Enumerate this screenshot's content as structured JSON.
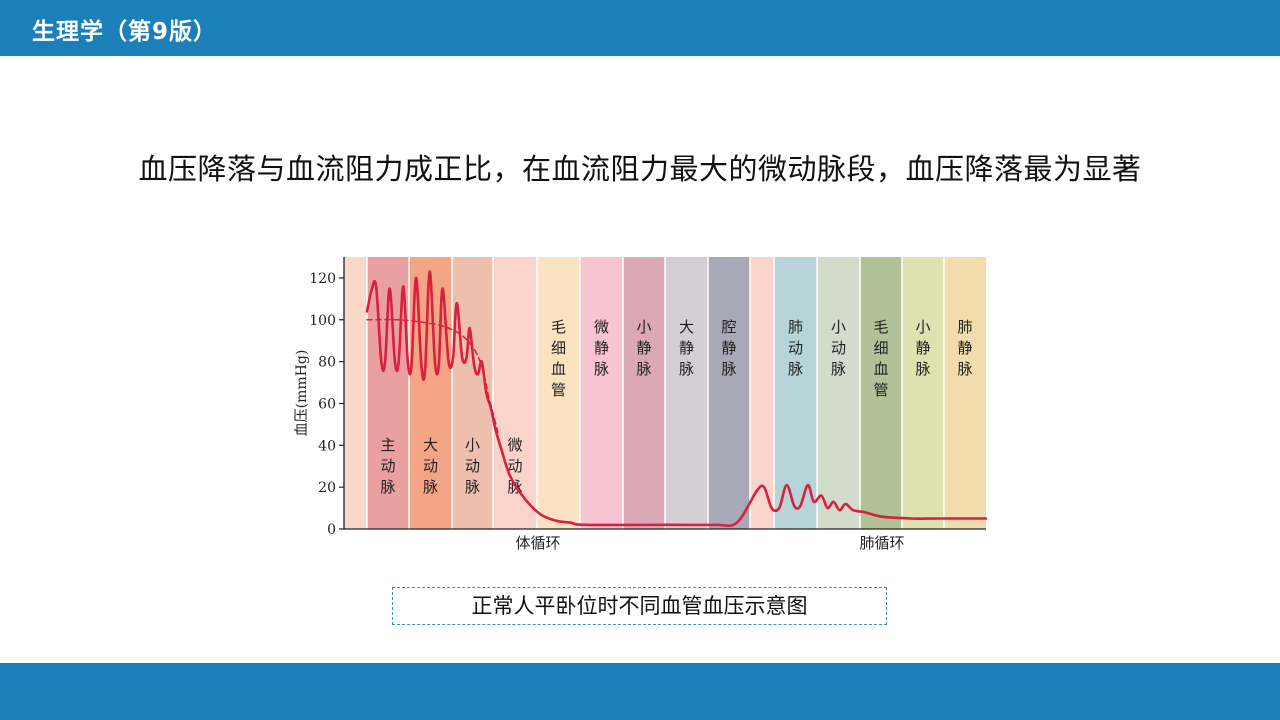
{
  "header": {
    "title": "生理学（第9版）"
  },
  "headline": "血压降落与血流阻力成正比，在血流阻力最大的微动脉段，血压降落最为显著",
  "caption": "正常人平卧位时不同血管血压示意图",
  "colors": {
    "bar": "#1b7fb9",
    "curve": "#d8203f"
  },
  "chart_data": {
    "type": "line",
    "ylabel": "血压(mmHg)",
    "ylim": [
      0,
      130
    ],
    "yticks": [
      0,
      20,
      40,
      60,
      80,
      100,
      120
    ],
    "xlabel_groups": [
      "体循环",
      "肺循环"
    ],
    "segments": [
      {
        "label": "",
        "color": "#f9d7c9"
      },
      {
        "label": "主动脉",
        "color": "#eaa0a0"
      },
      {
        "label": "大动脉",
        "color": "#f3a585"
      },
      {
        "label": "小动脉",
        "color": "#efbfae"
      },
      {
        "label": "微动脉",
        "color": "#fad4cb"
      },
      {
        "label": "毛细血管",
        "color": "#fbe3c2"
      },
      {
        "label": "微静脉",
        "color": "#f8c4d2"
      },
      {
        "label": "小静脉",
        "color": "#dba8b5"
      },
      {
        "label": "大静脉",
        "color": "#d4ced3"
      },
      {
        "label": "腔静脉",
        "color": "#a9a8b6"
      },
      {
        "label": "",
        "color": "#fad4cb"
      },
      {
        "label": "肺动脉",
        "color": "#b7d5d9"
      },
      {
        "label": "小动脉",
        "color": "#d1dccb"
      },
      {
        "label": "毛细血管",
        "color": "#b1c298"
      },
      {
        "label": "小静脉",
        "color": "#e0e1b1"
      },
      {
        "label": "肺静脉",
        "color": "#f0dcac"
      }
    ],
    "series": [
      {
        "style": "solid",
        "points": [
          [
            0,
            104
          ],
          [
            0.3,
            114
          ],
          [
            0.6,
            116
          ],
          [
            0.95,
            80
          ],
          [
            1.2,
            80
          ],
          [
            1.5,
            115
          ],
          [
            1.85,
            80
          ],
          [
            2.1,
            80
          ],
          [
            2.4,
            116
          ],
          [
            2.7,
            80
          ],
          [
            2.95,
            78
          ],
          [
            3.25,
            120
          ],
          [
            3.6,
            78
          ],
          [
            3.85,
            76
          ],
          [
            4.15,
            123
          ],
          [
            4.5,
            80
          ],
          [
            4.75,
            78
          ],
          [
            5,
            115
          ],
          [
            5.4,
            80
          ],
          [
            5.7,
            82
          ],
          [
            5.95,
            108
          ],
          [
            6.3,
            82
          ],
          [
            6.6,
            82
          ],
          [
            6.8,
            96
          ],
          [
            7.1,
            78
          ],
          [
            7.35,
            74
          ],
          [
            7.6,
            80
          ],
          [
            7.9,
            65
          ],
          [
            8.2,
            58
          ],
          [
            8.5,
            48
          ],
          [
            8.9,
            38
          ],
          [
            9.5,
            25
          ],
          [
            10.5,
            14
          ],
          [
            11.5,
            7
          ],
          [
            12.5,
            4
          ],
          [
            13.5,
            3
          ],
          [
            14.5,
            2
          ],
          [
            20,
            2
          ],
          [
            23,
            2
          ],
          [
            24.5,
            3
          ],
          [
            25.8,
            18
          ],
          [
            26.3,
            20
          ],
          [
            26.8,
            10
          ],
          [
            27.3,
            10
          ],
          [
            27.8,
            21
          ],
          [
            28.3,
            11
          ],
          [
            28.7,
            11
          ],
          [
            29.2,
            21
          ],
          [
            29.6,
            13
          ],
          [
            30.1,
            16
          ],
          [
            30.5,
            10
          ],
          [
            30.9,
            13
          ],
          [
            31.3,
            9
          ],
          [
            31.7,
            12
          ],
          [
            32.2,
            9
          ],
          [
            33,
            8
          ],
          [
            34,
            6
          ],
          [
            36,
            5
          ],
          [
            38,
            5
          ],
          [
            41,
            5
          ]
        ]
      },
      {
        "style": "dashed",
        "points": [
          [
            0,
            100
          ],
          [
            2,
            100
          ],
          [
            3.5,
            99
          ],
          [
            5,
            97
          ],
          [
            6.2,
            93
          ],
          [
            7,
            87
          ],
          [
            7.5,
            80
          ],
          [
            7.8,
            72
          ],
          [
            8.1,
            62
          ],
          [
            8.4,
            54
          ],
          [
            8.7,
            45
          ]
        ]
      }
    ]
  }
}
